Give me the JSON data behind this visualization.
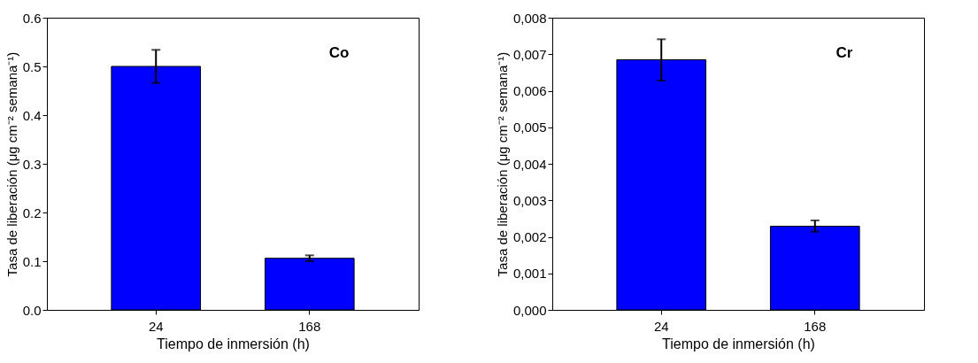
{
  "chart_data": [
    {
      "type": "bar",
      "categories": [
        "24",
        "168"
      ],
      "values": [
        0.5,
        0.106
      ],
      "errors": [
        [
          0.466,
          0.534
        ],
        [
          0.1,
          0.112
        ]
      ],
      "color": "#0000ff",
      "xlabel": "Tiempo de inmersión (h)",
      "ylabel": "Tasa de liberación (μg cm⁻² semana⁻¹)",
      "annotations": [
        "Co"
      ],
      "ylim": [
        0,
        0.6
      ],
      "yticks": [
        {
          "value": 0,
          "label": "0.0"
        },
        0.1,
        0.2,
        0.3,
        0.4,
        0.5,
        {
          "value": 0.6,
          "label": "0.6"
        }
      ],
      "grid": false
    },
    {
      "type": "bar",
      "categories": [
        "24",
        "168"
      ],
      "values": [
        0.00685,
        0.00229
      ],
      "errors": [
        [
          0.00628,
          0.00741
        ],
        [
          0.00214,
          0.00245
        ]
      ],
      "color": "#0000ff",
      "xlabel": "Tiempo de inmersión (h)",
      "ylabel": "Tasa de liberación (μg cm⁻² semana⁻¹)",
      "annotations": [
        "Cr"
      ],
      "ylim": [
        0,
        0.008
      ],
      "yticks": [
        {
          "value": 0,
          "label": "0,000"
        },
        {
          "value": 0.001,
          "label": "0,001"
        },
        {
          "value": 0.002,
          "label": "0,002"
        },
        {
          "value": 0.003,
          "label": "0,003"
        },
        {
          "value": 0.004,
          "label": "0,004"
        },
        {
          "value": 0.005,
          "label": "0,005"
        },
        {
          "value": 0.006,
          "label": "0,006"
        },
        {
          "value": 0.007,
          "label": "0,007"
        },
        {
          "value": 0.008,
          "label": "0,008"
        }
      ],
      "grid": false
    }
  ]
}
